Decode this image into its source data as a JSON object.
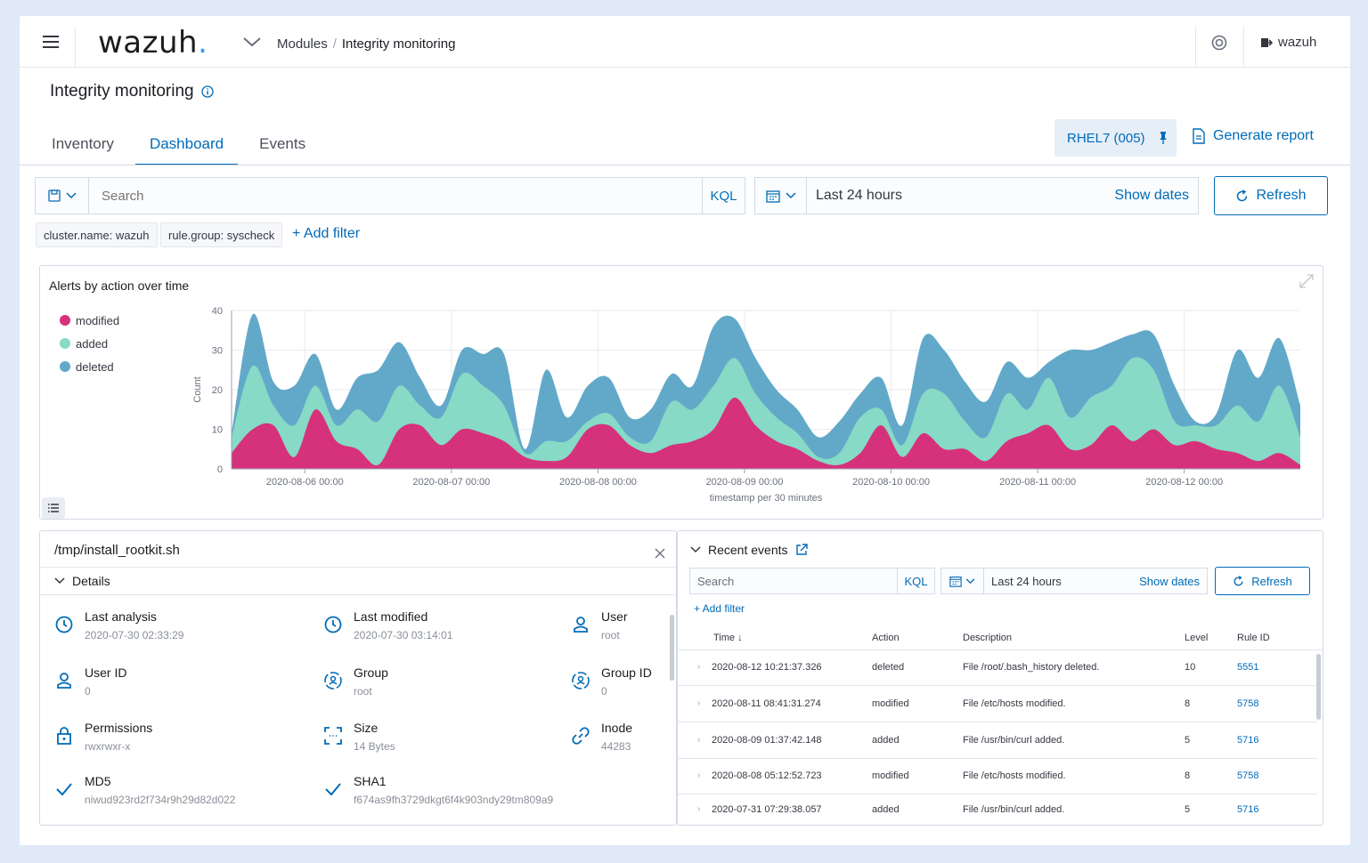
{
  "header": {
    "logo": "wazuh",
    "logo_dot": ".",
    "breadcrumb": [
      "Modules",
      "Integrity monitoring"
    ],
    "user": "wazuh"
  },
  "page": {
    "title": "Integrity monitoring",
    "tabs": [
      {
        "label": "Inventory",
        "active": false
      },
      {
        "label": "Dashboard",
        "active": true
      },
      {
        "label": "Events",
        "active": false
      }
    ],
    "agent_button": "RHEL7 (005)",
    "generate_report": "Generate report"
  },
  "query": {
    "search_placeholder": "Search",
    "kql": "KQL",
    "date_range": "Last 24 hours",
    "show_dates": "Show dates",
    "refresh": "Refresh",
    "filters": [
      "cluster.name: wazuh",
      "rule.group: syscheck"
    ],
    "add_filter": "+ Add filter"
  },
  "chart_data": {
    "type": "area",
    "title": "Alerts by action over time",
    "xlabel": "timestamp per 30 minutes",
    "ylabel": "Count",
    "ylim": [
      0,
      40
    ],
    "yticks": [
      0,
      10,
      20,
      30,
      40
    ],
    "x_tick_labels": [
      "2020-08-06 00:00",
      "2020-08-07 00:00",
      "2020-08-08 00:00",
      "2020-08-09 00:00",
      "2020-08-10 00:00",
      "2020-08-11 00:00",
      "2020-08-12 00:00"
    ],
    "x_start": "2020-08-05 12:00",
    "x_end": "2020-08-12 19:00",
    "stacked": true,
    "legend_position": "left",
    "series": [
      {
        "name": "modified",
        "color": "#d6317b",
        "values": [
          4,
          10,
          11,
          3,
          15,
          7,
          5,
          1,
          10,
          11,
          6,
          10,
          9,
          7,
          3,
          2,
          3,
          10,
          11,
          6,
          4,
          6,
          7,
          10,
          18,
          11,
          7,
          5,
          2,
          1,
          4,
          11,
          3,
          9,
          5,
          5,
          2,
          7,
          9,
          11,
          5,
          6,
          11,
          7,
          10,
          6,
          7,
          5,
          4,
          2,
          4,
          1
        ]
      },
      {
        "name": "added",
        "color": "#86dac6",
        "values": [
          4,
          16,
          5,
          8,
          6,
          4,
          10,
          11,
          11,
          5,
          7,
          14,
          12,
          9,
          1,
          5,
          4,
          2,
          3,
          2,
          3,
          11,
          8,
          11,
          10,
          8,
          6,
          4,
          1,
          3,
          9,
          4,
          3,
          10,
          14,
          7,
          6,
          12,
          6,
          12,
          8,
          12,
          10,
          21,
          15,
          6,
          4,
          6,
          12,
          10,
          17,
          7
        ]
      },
      {
        "name": "deleted",
        "color": "#62a9c9",
        "values": [
          1,
          13,
          6,
          10,
          8,
          4,
          8,
          13,
          11,
          7,
          3,
          6,
          8,
          13,
          1,
          18,
          6,
          9,
          9,
          5,
          8,
          7,
          6,
          15,
          10,
          9,
          7,
          6,
          5,
          8,
          6,
          8,
          5,
          14,
          11,
          10,
          9,
          8,
          8,
          4,
          17,
          12,
          11,
          6,
          9,
          9,
          1,
          3,
          14,
          11,
          12,
          8
        ]
      }
    ]
  },
  "details": {
    "file": "/tmp/install_rootkit.sh",
    "section_label": "Details",
    "fields": [
      {
        "label": "Last analysis",
        "value": "2020-07-30 02:33:29",
        "icon": "clock-icon"
      },
      {
        "label": "Last modified",
        "value": "2020-07-30 03:14:01",
        "icon": "clock-icon"
      },
      {
        "label": "User",
        "value": "root",
        "icon": "user-icon"
      },
      {
        "label": "User ID",
        "value": "0",
        "icon": "user-icon"
      },
      {
        "label": "Group",
        "value": "root",
        "icon": "group-icon"
      },
      {
        "label": "Group ID",
        "value": "0",
        "icon": "group-icon"
      },
      {
        "label": "Permissions",
        "value": "rwxrwxr-x",
        "icon": "lock-icon"
      },
      {
        "label": "Size",
        "value": "14 Bytes",
        "icon": "size-icon"
      },
      {
        "label": "Inode",
        "value": "44283",
        "icon": "link-icon"
      },
      {
        "label": "MD5",
        "value": "niwud923rd2f734r9h29d82d022",
        "icon": "check-icon"
      },
      {
        "label": "SHA1",
        "value": "f674as9fh3729dkgt6f4k903ndy29tm809a9",
        "icon": "check-icon"
      }
    ]
  },
  "events": {
    "title": "Recent events",
    "search_placeholder": "Search",
    "kql": "KQL",
    "date_range": "Last 24 hours",
    "show_dates": "Show dates",
    "refresh": "Refresh",
    "add_filter": "+ Add filter",
    "columns": [
      "Time",
      "Action",
      "Description",
      "Level",
      "Rule ID"
    ],
    "sort_indicator": "↓",
    "rows": [
      {
        "time": "2020-08-12  10:21:37.326",
        "action": "deleted",
        "description": "File /root/.bash_history deleted.",
        "level": "10",
        "rule_id": "5551"
      },
      {
        "time": "2020-08-11  08:41:31.274",
        "action": "modified",
        "description": "File  /etc/hosts  modified.",
        "level": "8",
        "rule_id": "5758"
      },
      {
        "time": "2020-08-09  01:37:42.148",
        "action": "added",
        "description": "File  /usr/bin/curl  added.",
        "level": "5",
        "rule_id": "5716"
      },
      {
        "time": "2020-08-08  05:12:52.723",
        "action": "modified",
        "description": "File  /etc/hosts  modified.",
        "level": "8",
        "rule_id": "5758"
      },
      {
        "time": "2020-07-31  07:29:38.057",
        "action": "added",
        "description": "File  /usr/bin/curl  added.",
        "level": "5",
        "rule_id": "5716"
      }
    ]
  }
}
